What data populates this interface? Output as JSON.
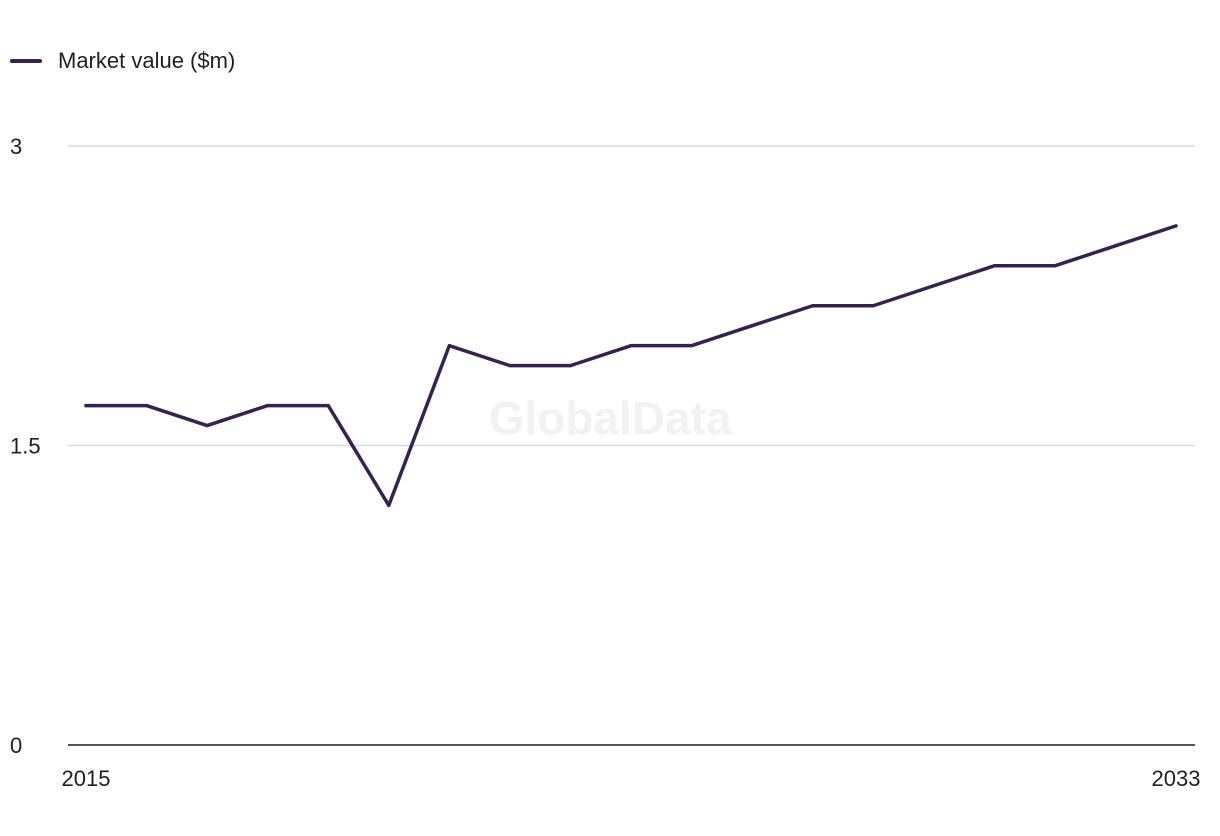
{
  "chart_data": {
    "type": "line",
    "x": [
      2015,
      2016,
      2017,
      2018,
      2019,
      2020,
      2021,
      2022,
      2023,
      2024,
      2025,
      2026,
      2027,
      2028,
      2029,
      2030,
      2031,
      2032,
      2033
    ],
    "series": [
      {
        "name": "Market value ($m)",
        "values": [
          1.7,
          1.7,
          1.6,
          1.7,
          1.7,
          1.2,
          2.0,
          1.9,
          1.9,
          2.0,
          2.0,
          2.1,
          2.2,
          2.2,
          2.3,
          2.4,
          2.4,
          2.5,
          2.6
        ],
        "color": "#35224f"
      }
    ],
    "ylim": [
      0,
      3
    ],
    "yticks": [
      "0",
      "1.5",
      "3"
    ],
    "xticks": [
      "2015",
      "2033"
    ],
    "grid": true,
    "legend": "top-left",
    "watermark": "GlobalData",
    "colors": {
      "gridline": "#d9d9de",
      "axis": "#1f1f1f"
    }
  }
}
